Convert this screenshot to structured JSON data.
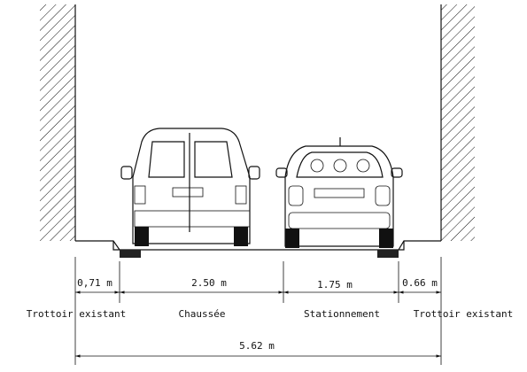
{
  "dimensions": [
    "0,71 m",
    "2.50 m",
    "1.75 m",
    "0.66 m"
  ],
  "zones": [
    "Trottoir existant",
    "Chaussée",
    "Stationnement",
    "Trottoir existant"
  ],
  "total": "5.62 m"
}
